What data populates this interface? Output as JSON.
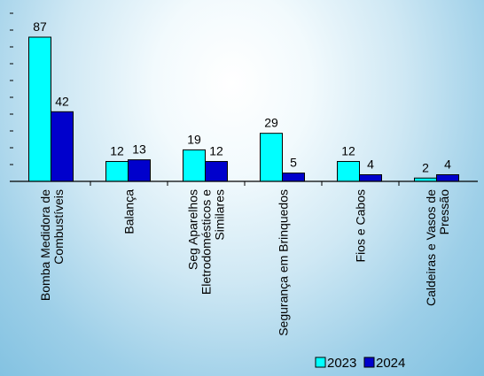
{
  "chart_data": {
    "type": "bar",
    "title": "",
    "xlabel": "",
    "ylabel": "",
    "ylim": [
      0,
      90
    ],
    "grid": false,
    "legend_position": "bottom-right",
    "categories": [
      [
        "Bomba Medidora de",
        "Combustíveis"
      ],
      [
        "Balança"
      ],
      [
        "Seg Aparelhos",
        "Eletrodomésticos e",
        "Similares"
      ],
      [
        "Segurança em Brinquedos"
      ],
      [
        "Fios e Cabos"
      ],
      [
        "Caldeiras e Vasos de",
        "Pressão"
      ]
    ],
    "series": [
      {
        "name": "2023",
        "color": "#00ffff",
        "values": [
          87,
          12,
          19,
          29,
          12,
          2
        ]
      },
      {
        "name": "2024",
        "color": "#0000cc",
        "values": [
          42,
          13,
          12,
          5,
          4,
          4
        ]
      }
    ]
  }
}
